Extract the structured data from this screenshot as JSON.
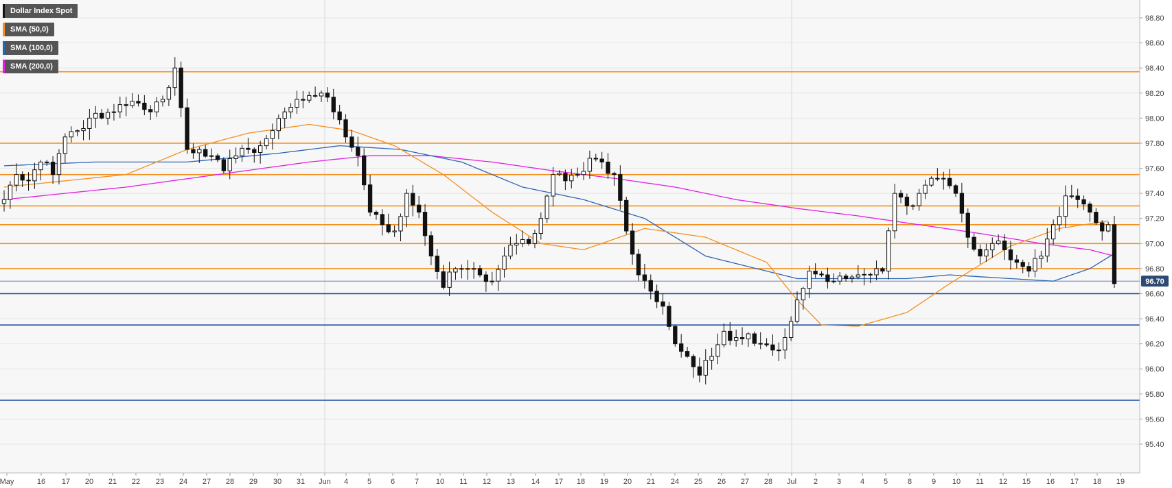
{
  "chart_data": {
    "type": "candlestick",
    "title": "Dollar Index Spot",
    "legend": [
      {
        "label": "Dollar Index Spot",
        "color": "#111111"
      },
      {
        "label": "SMA (50,0)",
        "color": "#f5901e"
      },
      {
        "label": "SMA (100,0)",
        "color": "#2d64b4"
      },
      {
        "label": "SMA (200,0)",
        "color": "#e020e0"
      }
    ],
    "ylim": [
      95.3,
      98.9
    ],
    "y_ticks": [
      "98.80",
      "98.60",
      "98.40",
      "98.20",
      "98.00",
      "97.80",
      "97.60",
      "97.40",
      "97.20",
      "97.00",
      "96.80",
      "96.60",
      "96.40",
      "96.20",
      "96.00",
      "95.80",
      "95.60",
      "95.40"
    ],
    "x_ticks": [
      "May",
      "16",
      "17",
      "20",
      "21",
      "22",
      "23",
      "24",
      "27",
      "28",
      "29",
      "30",
      "31",
      "Jun",
      "4",
      "5",
      "6",
      "7",
      "10",
      "11",
      "12",
      "13",
      "14",
      "17",
      "18",
      "19",
      "20",
      "21",
      "24",
      "25",
      "26",
      "27",
      "28",
      "Jul",
      "2",
      "3",
      "4",
      "5",
      "8",
      "9",
      "10",
      "11",
      "12",
      "15",
      "16",
      "17",
      "18",
      "19"
    ],
    "current_price_label": "96.70",
    "current_price": 96.7,
    "resistance_levels": [
      98.37,
      97.8,
      97.55,
      97.3,
      97.15,
      97.0,
      96.8
    ],
    "support_levels": [
      96.6,
      96.35,
      95.75
    ],
    "resistance_color": "#f5901e",
    "support_color": "#1c4fa0",
    "anchors": [
      [
        0,
        97.35
      ],
      [
        2,
        97.55
      ],
      [
        4,
        97.5
      ],
      [
        6,
        97.65
      ],
      [
        8,
        97.55
      ],
      [
        10,
        97.85
      ],
      [
        12,
        97.9
      ],
      [
        14,
        98.0
      ],
      [
        16,
        98.0
      ],
      [
        18,
        98.05
      ],
      [
        20,
        98.1
      ],
      [
        22,
        98.12
      ],
      [
        24,
        98.05
      ],
      [
        26,
        98.15
      ],
      [
        28,
        98.4
      ],
      [
        30,
        97.75
      ],
      [
        32,
        97.75
      ],
      [
        34,
        97.7
      ],
      [
        36,
        97.58
      ],
      [
        38,
        97.7
      ],
      [
        40,
        97.75
      ],
      [
        42,
        97.78
      ],
      [
        44,
        97.9
      ],
      [
        46,
        98.05
      ],
      [
        48,
        98.15
      ],
      [
        50,
        98.18
      ],
      [
        52,
        98.2
      ],
      [
        54,
        98.05
      ],
      [
        56,
        97.85
      ],
      [
        58,
        97.7
      ],
      [
        60,
        97.25
      ],
      [
        62,
        97.15
      ],
      [
        64,
        97.1
      ],
      [
        66,
        97.4
      ],
      [
        68,
        97.25
      ],
      [
        70,
        96.9
      ],
      [
        72,
        96.65
      ],
      [
        74,
        96.8
      ],
      [
        76,
        96.8
      ],
      [
        78,
        96.75
      ],
      [
        80,
        96.7
      ],
      [
        82,
        96.9
      ],
      [
        84,
        97.0
      ],
      [
        86,
        97.0
      ],
      [
        88,
        97.2
      ],
      [
        90,
        97.55
      ],
      [
        92,
        97.5
      ],
      [
        94,
        97.55
      ],
      [
        96,
        97.68
      ],
      [
        98,
        97.65
      ],
      [
        100,
        97.55
      ],
      [
        102,
        97.1
      ],
      [
        104,
        96.75
      ],
      [
        106,
        96.62
      ],
      [
        108,
        96.5
      ],
      [
        110,
        96.2
      ],
      [
        112,
        96.1
      ],
      [
        114,
        95.95
      ],
      [
        116,
        96.1
      ],
      [
        118,
        96.3
      ],
      [
        120,
        96.25
      ],
      [
        122,
        96.28
      ],
      [
        124,
        96.2
      ],
      [
        126,
        96.15
      ],
      [
        128,
        96.25
      ],
      [
        130,
        96.55
      ],
      [
        132,
        96.78
      ],
      [
        134,
        96.75
      ],
      [
        136,
        96.7
      ],
      [
        138,
        96.72
      ],
      [
        140,
        96.75
      ],
      [
        142,
        96.75
      ],
      [
        144,
        96.78
      ],
      [
        146,
        97.4
      ],
      [
        148,
        97.3
      ],
      [
        150,
        97.4
      ],
      [
        152,
        97.52
      ],
      [
        154,
        97.52
      ],
      [
        156,
        97.4
      ],
      [
        158,
        97.05
      ],
      [
        160,
        96.9
      ],
      [
        162,
        97.0
      ],
      [
        164,
        96.95
      ],
      [
        166,
        96.85
      ],
      [
        168,
        96.78
      ],
      [
        170,
        96.9
      ],
      [
        172,
        97.15
      ],
      [
        174,
        97.38
      ],
      [
        176,
        97.35
      ],
      [
        178,
        97.25
      ],
      [
        180,
        97.1
      ],
      [
        181,
        97.15
      ],
      [
        182,
        96.68
      ]
    ],
    "sma50": [
      [
        0,
        97.45
      ],
      [
        20,
        97.55
      ],
      [
        30,
        97.75
      ],
      [
        40,
        97.88
      ],
      [
        50,
        97.95
      ],
      [
        57,
        97.9
      ],
      [
        64,
        97.78
      ],
      [
        72,
        97.55
      ],
      [
        80,
        97.25
      ],
      [
        88,
        97.0
      ],
      [
        95,
        96.95
      ],
      [
        105,
        97.12
      ],
      [
        115,
        97.05
      ],
      [
        125,
        96.85
      ],
      [
        130,
        96.55
      ],
      [
        134,
        96.35
      ],
      [
        140,
        96.34
      ],
      [
        148,
        96.45
      ],
      [
        155,
        96.68
      ],
      [
        165,
        96.98
      ],
      [
        173,
        97.12
      ],
      [
        181,
        97.18
      ]
    ],
    "sma100": [
      [
        0,
        97.62
      ],
      [
        15,
        97.65
      ],
      [
        30,
        97.65
      ],
      [
        45,
        97.72
      ],
      [
        55,
        97.78
      ],
      [
        65,
        97.75
      ],
      [
        75,
        97.65
      ],
      [
        85,
        97.45
      ],
      [
        95,
        97.35
      ],
      [
        105,
        97.2
      ],
      [
        115,
        96.9
      ],
      [
        125,
        96.78
      ],
      [
        130,
        96.72
      ],
      [
        140,
        96.72
      ],
      [
        148,
        96.72
      ],
      [
        155,
        96.75
      ],
      [
        165,
        96.72
      ],
      [
        172,
        96.7
      ],
      [
        178,
        96.8
      ],
      [
        182,
        96.92
      ]
    ],
    "sma200": [
      [
        0,
        97.35
      ],
      [
        20,
        97.45
      ],
      [
        35,
        97.55
      ],
      [
        50,
        97.65
      ],
      [
        60,
        97.7
      ],
      [
        70,
        97.7
      ],
      [
        80,
        97.65
      ],
      [
        90,
        97.58
      ],
      [
        100,
        97.52
      ],
      [
        110,
        97.45
      ],
      [
        120,
        97.35
      ],
      [
        130,
        97.28
      ],
      [
        140,
        97.22
      ],
      [
        150,
        97.15
      ],
      [
        160,
        97.08
      ],
      [
        170,
        97.0
      ],
      [
        178,
        96.95
      ],
      [
        182,
        96.9
      ]
    ]
  }
}
